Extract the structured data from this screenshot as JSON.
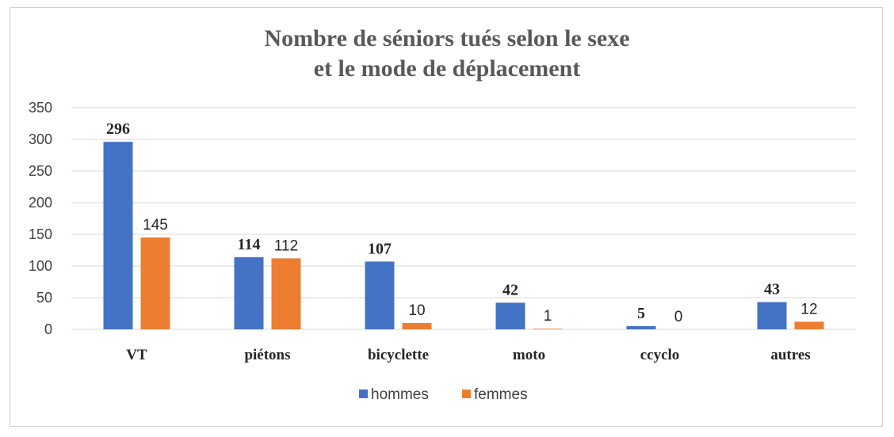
{
  "chart_data": {
    "type": "bar",
    "title": [
      "Nombre de séniors tués selon le sexe",
      "et le mode de déplacement"
    ],
    "categories": [
      "VT",
      "piétons",
      "bicyclette",
      "moto",
      "ccyclo",
      "autres"
    ],
    "series": [
      {
        "name": "hommes",
        "values": [
          296,
          114,
          107,
          42,
          5,
          43
        ],
        "color": "#4472C4"
      },
      {
        "name": "femmes",
        "values": [
          145,
          112,
          10,
          1,
          0,
          12
        ],
        "color": "#ED7D31"
      }
    ],
    "ylim": [
      0,
      350
    ],
    "yticks": [
      0,
      50,
      100,
      150,
      200,
      250,
      300,
      350
    ],
    "grid": true,
    "legend": "bottom"
  }
}
